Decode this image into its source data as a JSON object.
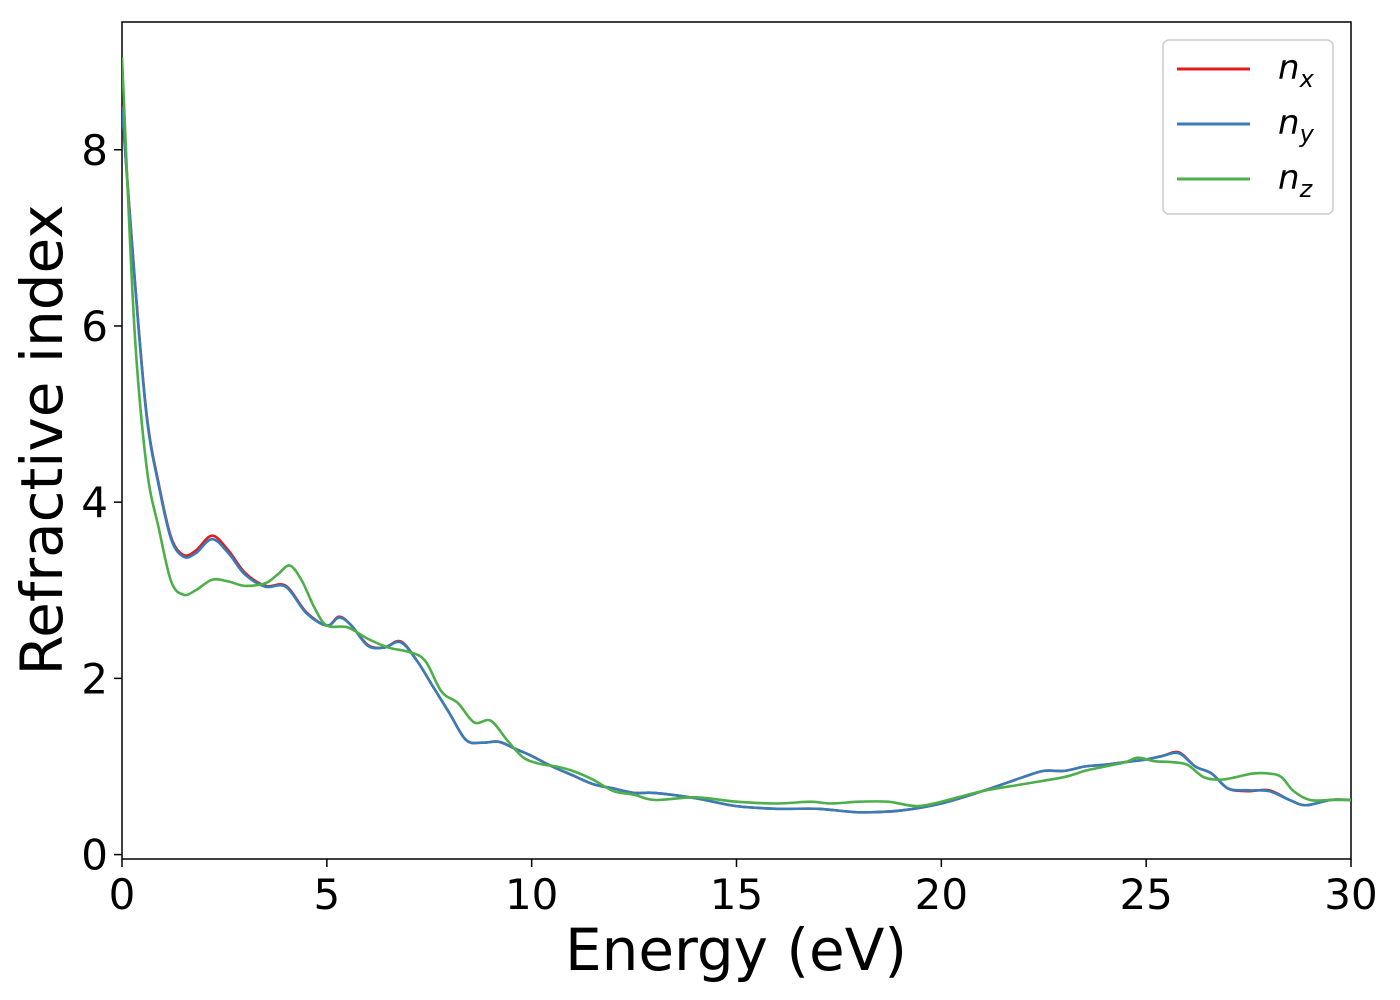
{
  "chart_data": {
    "type": "line",
    "xlabel": "Energy (eV)",
    "ylabel": "Refractive index",
    "xlim": [
      0,
      30
    ],
    "ylim": [
      -0.05,
      9.45
    ],
    "xticks": [
      0,
      5,
      10,
      15,
      20,
      25,
      30
    ],
    "yticks": [
      0,
      2,
      4,
      6,
      8
    ],
    "grid": false,
    "legend_position": "top-right",
    "series": [
      {
        "name": "n_x",
        "legend_base": "n",
        "legend_sub": "x",
        "color": "#e41a1c",
        "x": [
          0,
          0.3,
          0.6,
          0.9,
          1.2,
          1.5,
          1.8,
          2.2,
          2.6,
          3.0,
          3.5,
          4.0,
          4.5,
          5.0,
          5.3,
          5.6,
          6.0,
          6.4,
          6.8,
          7.2,
          7.6,
          8.0,
          8.4,
          8.8,
          9.2,
          9.6,
          10.0,
          10.5,
          11.0,
          11.5,
          12.0,
          12.5,
          13.0,
          14.0,
          15.0,
          16.0,
          17.0,
          18.0,
          19.0,
          20.0,
          21.0,
          22.0,
          22.5,
          23.0,
          23.5,
          24.0,
          24.5,
          25.0,
          25.4,
          25.8,
          26.2,
          26.6,
          27.0,
          27.5,
          28.0,
          28.5,
          28.9,
          29.5,
          30.0
        ],
        "y": [
          8.5,
          6.6,
          5.0,
          4.2,
          3.6,
          3.4,
          3.45,
          3.62,
          3.45,
          3.2,
          3.05,
          3.05,
          2.75,
          2.6,
          2.7,
          2.6,
          2.38,
          2.35,
          2.42,
          2.2,
          1.9,
          1.6,
          1.3,
          1.27,
          1.28,
          1.2,
          1.12,
          1.0,
          0.9,
          0.8,
          0.75,
          0.7,
          0.7,
          0.64,
          0.55,
          0.52,
          0.52,
          0.48,
          0.5,
          0.58,
          0.72,
          0.88,
          0.95,
          0.95,
          1.0,
          1.02,
          1.05,
          1.08,
          1.12,
          1.16,
          1.0,
          0.92,
          0.75,
          0.72,
          0.73,
          0.62,
          0.56,
          0.62,
          0.62
        ]
      },
      {
        "name": "n_y",
        "legend_base": "n",
        "legend_sub": "y",
        "color": "#377eb8",
        "x": [
          0,
          0.3,
          0.6,
          0.9,
          1.2,
          1.5,
          1.8,
          2.2,
          2.6,
          3.0,
          3.5,
          4.0,
          4.5,
          5.0,
          5.3,
          5.6,
          6.0,
          6.4,
          6.8,
          7.2,
          7.6,
          8.0,
          8.4,
          8.8,
          9.2,
          9.6,
          10.0,
          10.5,
          11.0,
          11.5,
          12.0,
          12.5,
          13.0,
          14.0,
          15.0,
          16.0,
          17.0,
          18.0,
          19.0,
          20.0,
          21.0,
          22.0,
          22.5,
          23.0,
          23.5,
          24.0,
          24.5,
          25.0,
          25.4,
          25.8,
          26.2,
          26.6,
          27.0,
          27.5,
          28.0,
          28.5,
          28.9,
          29.5,
          30.0
        ],
        "y": [
          8.48,
          6.58,
          4.98,
          4.18,
          3.58,
          3.38,
          3.42,
          3.58,
          3.42,
          3.18,
          3.04,
          3.04,
          2.74,
          2.6,
          2.69,
          2.6,
          2.37,
          2.35,
          2.41,
          2.2,
          1.9,
          1.6,
          1.3,
          1.27,
          1.28,
          1.2,
          1.12,
          1.0,
          0.9,
          0.8,
          0.75,
          0.7,
          0.7,
          0.64,
          0.55,
          0.52,
          0.52,
          0.48,
          0.5,
          0.58,
          0.72,
          0.88,
          0.95,
          0.95,
          1.0,
          1.02,
          1.05,
          1.08,
          1.12,
          1.15,
          1.0,
          0.92,
          0.75,
          0.73,
          0.72,
          0.62,
          0.56,
          0.62,
          0.62
        ]
      },
      {
        "name": "n_z",
        "legend_base": "n",
        "legend_sub": "z",
        "color": "#4daf4a",
        "x": [
          0,
          0.3,
          0.6,
          0.9,
          1.2,
          1.5,
          1.8,
          2.2,
          2.6,
          3.0,
          3.5,
          3.8,
          4.1,
          4.4,
          4.7,
          5.0,
          5.5,
          6.0,
          6.5,
          7.0,
          7.4,
          7.8,
          8.2,
          8.6,
          9.0,
          9.4,
          9.8,
          10.2,
          10.6,
          11.0,
          11.5,
          12.0,
          12.5,
          13.0,
          14.0,
          15.0,
          16.0,
          16.8,
          17.3,
          18.0,
          18.7,
          19.4,
          20.0,
          21.0,
          22.0,
          23.0,
          23.5,
          24.0,
          24.5,
          24.8,
          25.2,
          25.6,
          26.0,
          26.4,
          26.8,
          27.2,
          27.6,
          28.0,
          28.3,
          28.6,
          29.0,
          29.5,
          30.0
        ],
        "y": [
          9.05,
          6.0,
          4.4,
          3.7,
          3.1,
          2.95,
          3.0,
          3.12,
          3.1,
          3.05,
          3.08,
          3.18,
          3.28,
          3.1,
          2.8,
          2.6,
          2.58,
          2.45,
          2.35,
          2.3,
          2.2,
          1.85,
          1.72,
          1.5,
          1.52,
          1.3,
          1.1,
          1.03,
          1.0,
          0.95,
          0.85,
          0.72,
          0.68,
          0.62,
          0.65,
          0.6,
          0.58,
          0.6,
          0.58,
          0.6,
          0.6,
          0.55,
          0.6,
          0.72,
          0.8,
          0.88,
          0.95,
          1.0,
          1.05,
          1.1,
          1.06,
          1.05,
          1.02,
          0.88,
          0.85,
          0.88,
          0.92,
          0.92,
          0.88,
          0.72,
          0.62,
          0.62,
          0.62
        ]
      }
    ]
  }
}
